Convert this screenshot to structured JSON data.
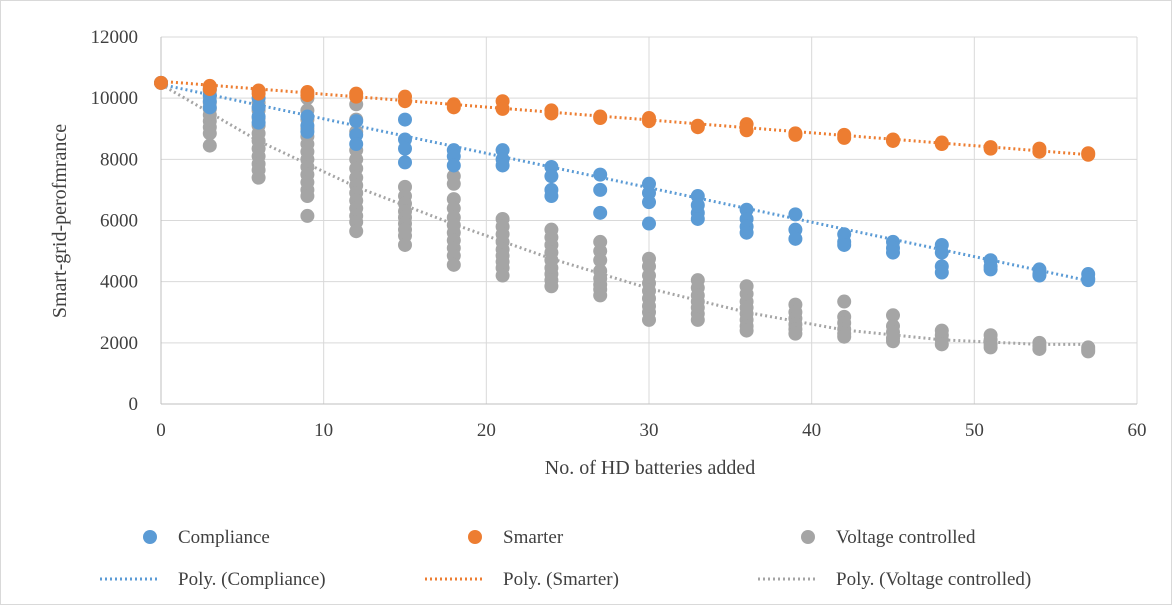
{
  "chart_data": {
    "type": "scatter",
    "title": "",
    "xlabel": "No. of HD batteries added",
    "ylabel": "Smart-grid-perofmrance",
    "xlim": [
      0,
      60
    ],
    "ylim": [
      0,
      12000
    ],
    "xticks": [
      0,
      10,
      20,
      30,
      40,
      50,
      60
    ],
    "yticks": [
      0,
      2000,
      4000,
      6000,
      8000,
      10000,
      12000
    ],
    "grid": true,
    "legend_position": "bottom",
    "series": [
      {
        "name": "Compliance",
        "color": "#5b9bd5",
        "points": [
          [
            0,
            10500
          ],
          [
            3,
            10300
          ],
          [
            3,
            10100
          ],
          [
            3,
            9900
          ],
          [
            3,
            9700
          ],
          [
            6,
            10000
          ],
          [
            6,
            9700
          ],
          [
            6,
            9400
          ],
          [
            6,
            9200
          ],
          [
            9,
            9400
          ],
          [
            9,
            9100
          ],
          [
            9,
            8900
          ],
          [
            12,
            9250
          ],
          [
            12,
            8800
          ],
          [
            12,
            8500
          ],
          [
            15,
            9300
          ],
          [
            15,
            8650
          ],
          [
            15,
            8350
          ],
          [
            15,
            7900
          ],
          [
            18,
            8300
          ],
          [
            18,
            8100
          ],
          [
            18,
            7800
          ],
          [
            21,
            8300
          ],
          [
            21,
            8000
          ],
          [
            21,
            7800
          ],
          [
            24,
            7750
          ],
          [
            24,
            7450
          ],
          [
            24,
            7000
          ],
          [
            24,
            6800
          ],
          [
            27,
            7500
          ],
          [
            27,
            7000
          ],
          [
            27,
            6250
          ],
          [
            30,
            7200
          ],
          [
            30,
            6900
          ],
          [
            30,
            6600
          ],
          [
            30,
            5900
          ],
          [
            33,
            6800
          ],
          [
            33,
            6500
          ],
          [
            33,
            6250
          ],
          [
            33,
            6050
          ],
          [
            36,
            6350
          ],
          [
            36,
            6050
          ],
          [
            36,
            5800
          ],
          [
            36,
            5600
          ],
          [
            39,
            6200
          ],
          [
            39,
            5700
          ],
          [
            39,
            5400
          ],
          [
            42,
            5550
          ],
          [
            42,
            5300
          ],
          [
            42,
            5200
          ],
          [
            45,
            5300
          ],
          [
            45,
            5100
          ],
          [
            45,
            4950
          ],
          [
            48,
            5200
          ],
          [
            48,
            4950
          ],
          [
            48,
            4500
          ],
          [
            48,
            4300
          ],
          [
            51,
            4700
          ],
          [
            51,
            4500
          ],
          [
            51,
            4400
          ],
          [
            54,
            4400
          ],
          [
            54,
            4250
          ],
          [
            54,
            4200
          ],
          [
            57,
            4250
          ],
          [
            57,
            4100
          ],
          [
            57,
            4050
          ]
        ],
        "trendline": {
          "name": "Poly. (Compliance)",
          "points": [
            [
              0,
              10450
            ],
            [
              57,
              4030
            ]
          ]
        }
      },
      {
        "name": "Smarter",
        "color": "#ed7d31",
        "points": [
          [
            0,
            10500
          ],
          [
            3,
            10400
          ],
          [
            3,
            10300
          ],
          [
            6,
            10250
          ],
          [
            6,
            10150
          ],
          [
            9,
            10200
          ],
          [
            9,
            10100
          ],
          [
            12,
            10150
          ],
          [
            12,
            10050
          ],
          [
            15,
            10050
          ],
          [
            15,
            9900
          ],
          [
            18,
            9800
          ],
          [
            18,
            9700
          ],
          [
            21,
            9900
          ],
          [
            21,
            9650
          ],
          [
            24,
            9600
          ],
          [
            24,
            9500
          ],
          [
            27,
            9400
          ],
          [
            27,
            9350
          ],
          [
            30,
            9350
          ],
          [
            30,
            9250
          ],
          [
            33,
            9100
          ],
          [
            33,
            9050
          ],
          [
            36,
            9150
          ],
          [
            36,
            8950
          ],
          [
            39,
            8850
          ],
          [
            39,
            8800
          ],
          [
            42,
            8800
          ],
          [
            42,
            8700
          ],
          [
            45,
            8650
          ],
          [
            45,
            8600
          ],
          [
            48,
            8550
          ],
          [
            48,
            8500
          ],
          [
            51,
            8400
          ],
          [
            51,
            8350
          ],
          [
            54,
            8350
          ],
          [
            54,
            8250
          ],
          [
            57,
            8200
          ],
          [
            57,
            8150
          ]
        ],
        "trendline": {
          "name": "Poly. (Smarter)",
          "points": [
            [
              0,
              10550
            ],
            [
              57,
              8150
            ]
          ]
        }
      },
      {
        "name": "Voltage controlled",
        "color": "#a5a5a5",
        "points": [
          [
            0,
            10500
          ],
          [
            3,
            10250
          ],
          [
            3,
            10050
          ],
          [
            3,
            9850
          ],
          [
            3,
            9650
          ],
          [
            3,
            9450
          ],
          [
            3,
            9250
          ],
          [
            3,
            9050
          ],
          [
            3,
            8850
          ],
          [
            3,
            8450
          ],
          [
            6,
            9850
          ],
          [
            6,
            9600
          ],
          [
            6,
            9350
          ],
          [
            6,
            9100
          ],
          [
            6,
            8850
          ],
          [
            6,
            8600
          ],
          [
            6,
            8350
          ],
          [
            6,
            8100
          ],
          [
            6,
            7850
          ],
          [
            6,
            7650
          ],
          [
            6,
            7400
          ],
          [
            9,
            10000
          ],
          [
            9,
            9600
          ],
          [
            9,
            9300
          ],
          [
            9,
            9000
          ],
          [
            9,
            8750
          ],
          [
            9,
            8500
          ],
          [
            9,
            8250
          ],
          [
            9,
            8000
          ],
          [
            9,
            7750
          ],
          [
            9,
            7500
          ],
          [
            9,
            7250
          ],
          [
            9,
            7000
          ],
          [
            9,
            6800
          ],
          [
            9,
            6150
          ],
          [
            12,
            9800
          ],
          [
            12,
            9300
          ],
          [
            12,
            8900
          ],
          [
            12,
            8300
          ],
          [
            12,
            8000
          ],
          [
            12,
            7700
          ],
          [
            12,
            7400
          ],
          [
            12,
            7150
          ],
          [
            12,
            6900
          ],
          [
            12,
            6650
          ],
          [
            12,
            6400
          ],
          [
            12,
            6150
          ],
          [
            12,
            5950
          ],
          [
            12,
            5650
          ],
          [
            15,
            7100
          ],
          [
            15,
            6800
          ],
          [
            15,
            6550
          ],
          [
            15,
            6300
          ],
          [
            15,
            6100
          ],
          [
            15,
            5900
          ],
          [
            15,
            5700
          ],
          [
            15,
            5500
          ],
          [
            15,
            5200
          ],
          [
            18,
            7450
          ],
          [
            18,
            7200
          ],
          [
            18,
            6700
          ],
          [
            18,
            6400
          ],
          [
            18,
            6100
          ],
          [
            18,
            5850
          ],
          [
            18,
            5600
          ],
          [
            18,
            5350
          ],
          [
            18,
            5100
          ],
          [
            18,
            4850
          ],
          [
            18,
            4550
          ],
          [
            21,
            6050
          ],
          [
            21,
            5800
          ],
          [
            21,
            5550
          ],
          [
            21,
            5300
          ],
          [
            21,
            5050
          ],
          [
            21,
            4850
          ],
          [
            21,
            4650
          ],
          [
            21,
            4450
          ],
          [
            21,
            4200
          ],
          [
            24,
            5700
          ],
          [
            24,
            5450
          ],
          [
            24,
            5200
          ],
          [
            24,
            4950
          ],
          [
            24,
            4700
          ],
          [
            24,
            4450
          ],
          [
            24,
            4250
          ],
          [
            24,
            4050
          ],
          [
            24,
            3850
          ],
          [
            27,
            5300
          ],
          [
            27,
            5000
          ],
          [
            27,
            4700
          ],
          [
            27,
            4350
          ],
          [
            27,
            4100
          ],
          [
            27,
            3900
          ],
          [
            27,
            3750
          ],
          [
            27,
            3550
          ],
          [
            30,
            4750
          ],
          [
            30,
            4500
          ],
          [
            30,
            4200
          ],
          [
            30,
            3950
          ],
          [
            30,
            3700
          ],
          [
            30,
            3450
          ],
          [
            30,
            3200
          ],
          [
            30,
            3000
          ],
          [
            30,
            2750
          ],
          [
            33,
            4050
          ],
          [
            33,
            3800
          ],
          [
            33,
            3550
          ],
          [
            33,
            3350
          ],
          [
            33,
            3150
          ],
          [
            33,
            2950
          ],
          [
            33,
            2750
          ],
          [
            36,
            3850
          ],
          [
            36,
            3600
          ],
          [
            36,
            3350
          ],
          [
            36,
            3150
          ],
          [
            36,
            2950
          ],
          [
            36,
            2750
          ],
          [
            36,
            2550
          ],
          [
            36,
            2400
          ],
          [
            39,
            3250
          ],
          [
            39,
            3000
          ],
          [
            39,
            2800
          ],
          [
            39,
            2600
          ],
          [
            39,
            2450
          ],
          [
            39,
            2300
          ],
          [
            42,
            3350
          ],
          [
            42,
            2850
          ],
          [
            42,
            2650
          ],
          [
            42,
            2450
          ],
          [
            42,
            2300
          ],
          [
            42,
            2200
          ],
          [
            45,
            2900
          ],
          [
            45,
            2550
          ],
          [
            45,
            2350
          ],
          [
            45,
            2150
          ],
          [
            45,
            2050
          ],
          [
            48,
            2400
          ],
          [
            48,
            2250
          ],
          [
            48,
            2100
          ],
          [
            48,
            1950
          ],
          [
            51,
            2250
          ],
          [
            51,
            2100
          ],
          [
            51,
            1950
          ],
          [
            51,
            1850
          ],
          [
            54,
            2000
          ],
          [
            54,
            1900
          ],
          [
            54,
            1800
          ],
          [
            57,
            1850
          ],
          [
            57,
            1780
          ],
          [
            57,
            1720
          ]
        ],
        "trendline": {
          "name": "Poly. (Voltage controlled)",
          "points": [
            [
              0,
              10450
            ],
            [
              6,
              8600
            ],
            [
              12,
              7100
            ],
            [
              18,
              5880
            ],
            [
              24,
              4750
            ],
            [
              30,
              3780
            ],
            [
              36,
              3000
            ],
            [
              42,
              2420
            ],
            [
              48,
              2100
            ],
            [
              54,
              1950
            ],
            [
              57,
              1950
            ]
          ]
        }
      }
    ]
  }
}
